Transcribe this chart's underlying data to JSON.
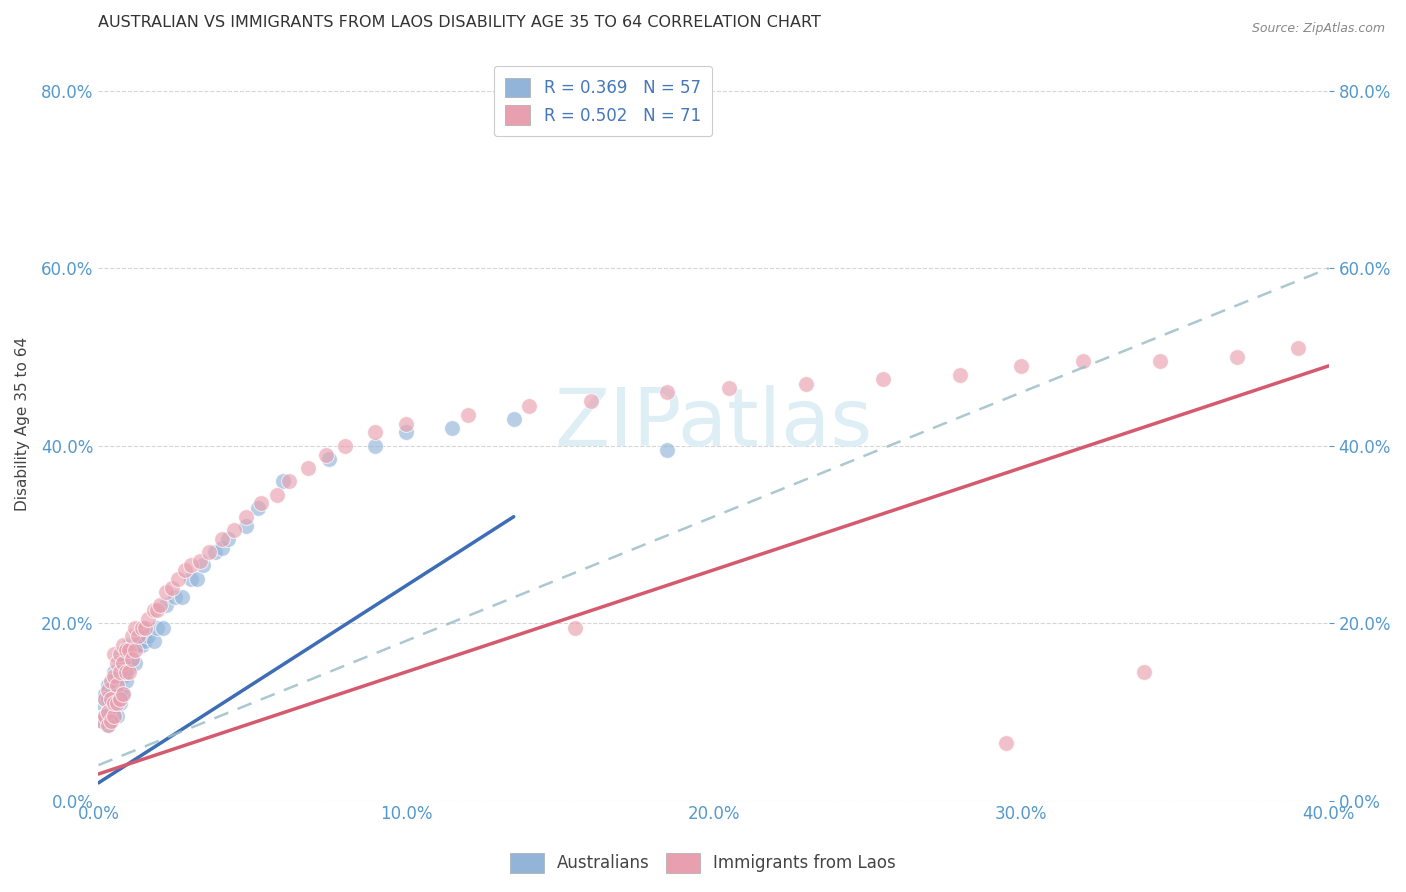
{
  "title": "AUSTRALIAN VS IMMIGRANTS FROM LAOS DISABILITY AGE 35 TO 64 CORRELATION CHART",
  "source": "Source: ZipAtlas.com",
  "ylabel": "Disability Age 35 to 64",
  "xlim": [
    0.0,
    0.4
  ],
  "ylim": [
    0.0,
    0.85
  ],
  "xticks": [
    0.0,
    0.1,
    0.2,
    0.3,
    0.4
  ],
  "yticks": [
    0.0,
    0.2,
    0.4,
    0.6,
    0.8
  ],
  "R_blue": 0.369,
  "N_blue": 57,
  "R_pink": 0.502,
  "N_pink": 71,
  "color_blue": "#92b4d9",
  "color_pink": "#e8a0b0",
  "color_blue_line": "#3d6db5",
  "color_pink_line": "#d45a6e",
  "color_dashed": "#9dbfc8",
  "watermark_color": "#ddeef5",
  "background_color": "#ffffff",
  "blue_points_x": [
    0.001,
    0.001,
    0.002,
    0.002,
    0.002,
    0.003,
    0.003,
    0.003,
    0.003,
    0.004,
    0.004,
    0.004,
    0.005,
    0.005,
    0.005,
    0.005,
    0.006,
    0.006,
    0.006,
    0.007,
    0.007,
    0.007,
    0.008,
    0.008,
    0.008,
    0.009,
    0.009,
    0.01,
    0.01,
    0.011,
    0.012,
    0.012,
    0.013,
    0.014,
    0.015,
    0.016,
    0.018,
    0.019,
    0.021,
    0.022,
    0.025,
    0.027,
    0.03,
    0.032,
    0.034,
    0.038,
    0.04,
    0.042,
    0.048,
    0.052,
    0.06,
    0.075,
    0.09,
    0.1,
    0.115,
    0.135,
    0.185
  ],
  "blue_points_y": [
    0.11,
    0.09,
    0.095,
    0.115,
    0.12,
    0.085,
    0.1,
    0.115,
    0.13,
    0.095,
    0.1,
    0.12,
    0.095,
    0.105,
    0.13,
    0.145,
    0.095,
    0.12,
    0.14,
    0.11,
    0.12,
    0.16,
    0.12,
    0.14,
    0.155,
    0.135,
    0.145,
    0.15,
    0.175,
    0.16,
    0.155,
    0.175,
    0.175,
    0.175,
    0.18,
    0.185,
    0.18,
    0.195,
    0.195,
    0.22,
    0.23,
    0.23,
    0.25,
    0.25,
    0.265,
    0.28,
    0.285,
    0.295,
    0.31,
    0.33,
    0.36,
    0.385,
    0.4,
    0.415,
    0.42,
    0.43,
    0.395
  ],
  "pink_points_x": [
    0.001,
    0.002,
    0.002,
    0.003,
    0.003,
    0.003,
    0.004,
    0.004,
    0.004,
    0.005,
    0.005,
    0.005,
    0.005,
    0.006,
    0.006,
    0.006,
    0.007,
    0.007,
    0.007,
    0.008,
    0.008,
    0.008,
    0.009,
    0.009,
    0.01,
    0.01,
    0.011,
    0.011,
    0.012,
    0.012,
    0.013,
    0.014,
    0.015,
    0.016,
    0.018,
    0.019,
    0.02,
    0.022,
    0.024,
    0.026,
    0.028,
    0.03,
    0.033,
    0.036,
    0.04,
    0.044,
    0.048,
    0.053,
    0.058,
    0.062,
    0.068,
    0.074,
    0.08,
    0.09,
    0.1,
    0.12,
    0.14,
    0.16,
    0.185,
    0.205,
    0.23,
    0.255,
    0.28,
    0.3,
    0.32,
    0.345,
    0.37,
    0.39,
    0.155,
    0.34,
    0.295
  ],
  "pink_points_y": [
    0.09,
    0.095,
    0.115,
    0.085,
    0.1,
    0.125,
    0.09,
    0.115,
    0.135,
    0.095,
    0.11,
    0.14,
    0.165,
    0.11,
    0.13,
    0.155,
    0.115,
    0.145,
    0.165,
    0.12,
    0.155,
    0.175,
    0.145,
    0.17,
    0.145,
    0.17,
    0.16,
    0.185,
    0.17,
    0.195,
    0.185,
    0.195,
    0.195,
    0.205,
    0.215,
    0.215,
    0.22,
    0.235,
    0.24,
    0.25,
    0.26,
    0.265,
    0.27,
    0.28,
    0.295,
    0.305,
    0.32,
    0.335,
    0.345,
    0.36,
    0.375,
    0.39,
    0.4,
    0.415,
    0.425,
    0.435,
    0.445,
    0.45,
    0.46,
    0.465,
    0.47,
    0.475,
    0.48,
    0.49,
    0.495,
    0.495,
    0.5,
    0.51,
    0.195,
    0.145,
    0.065
  ],
  "blue_line_x": [
    0.0,
    0.135
  ],
  "blue_line_y": [
    0.02,
    0.32
  ],
  "pink_line_x": [
    0.0,
    0.4
  ],
  "pink_line_y": [
    0.03,
    0.49
  ],
  "dashed_line_x": [
    0.0,
    0.4
  ],
  "dashed_line_y": [
    0.04,
    0.6
  ]
}
